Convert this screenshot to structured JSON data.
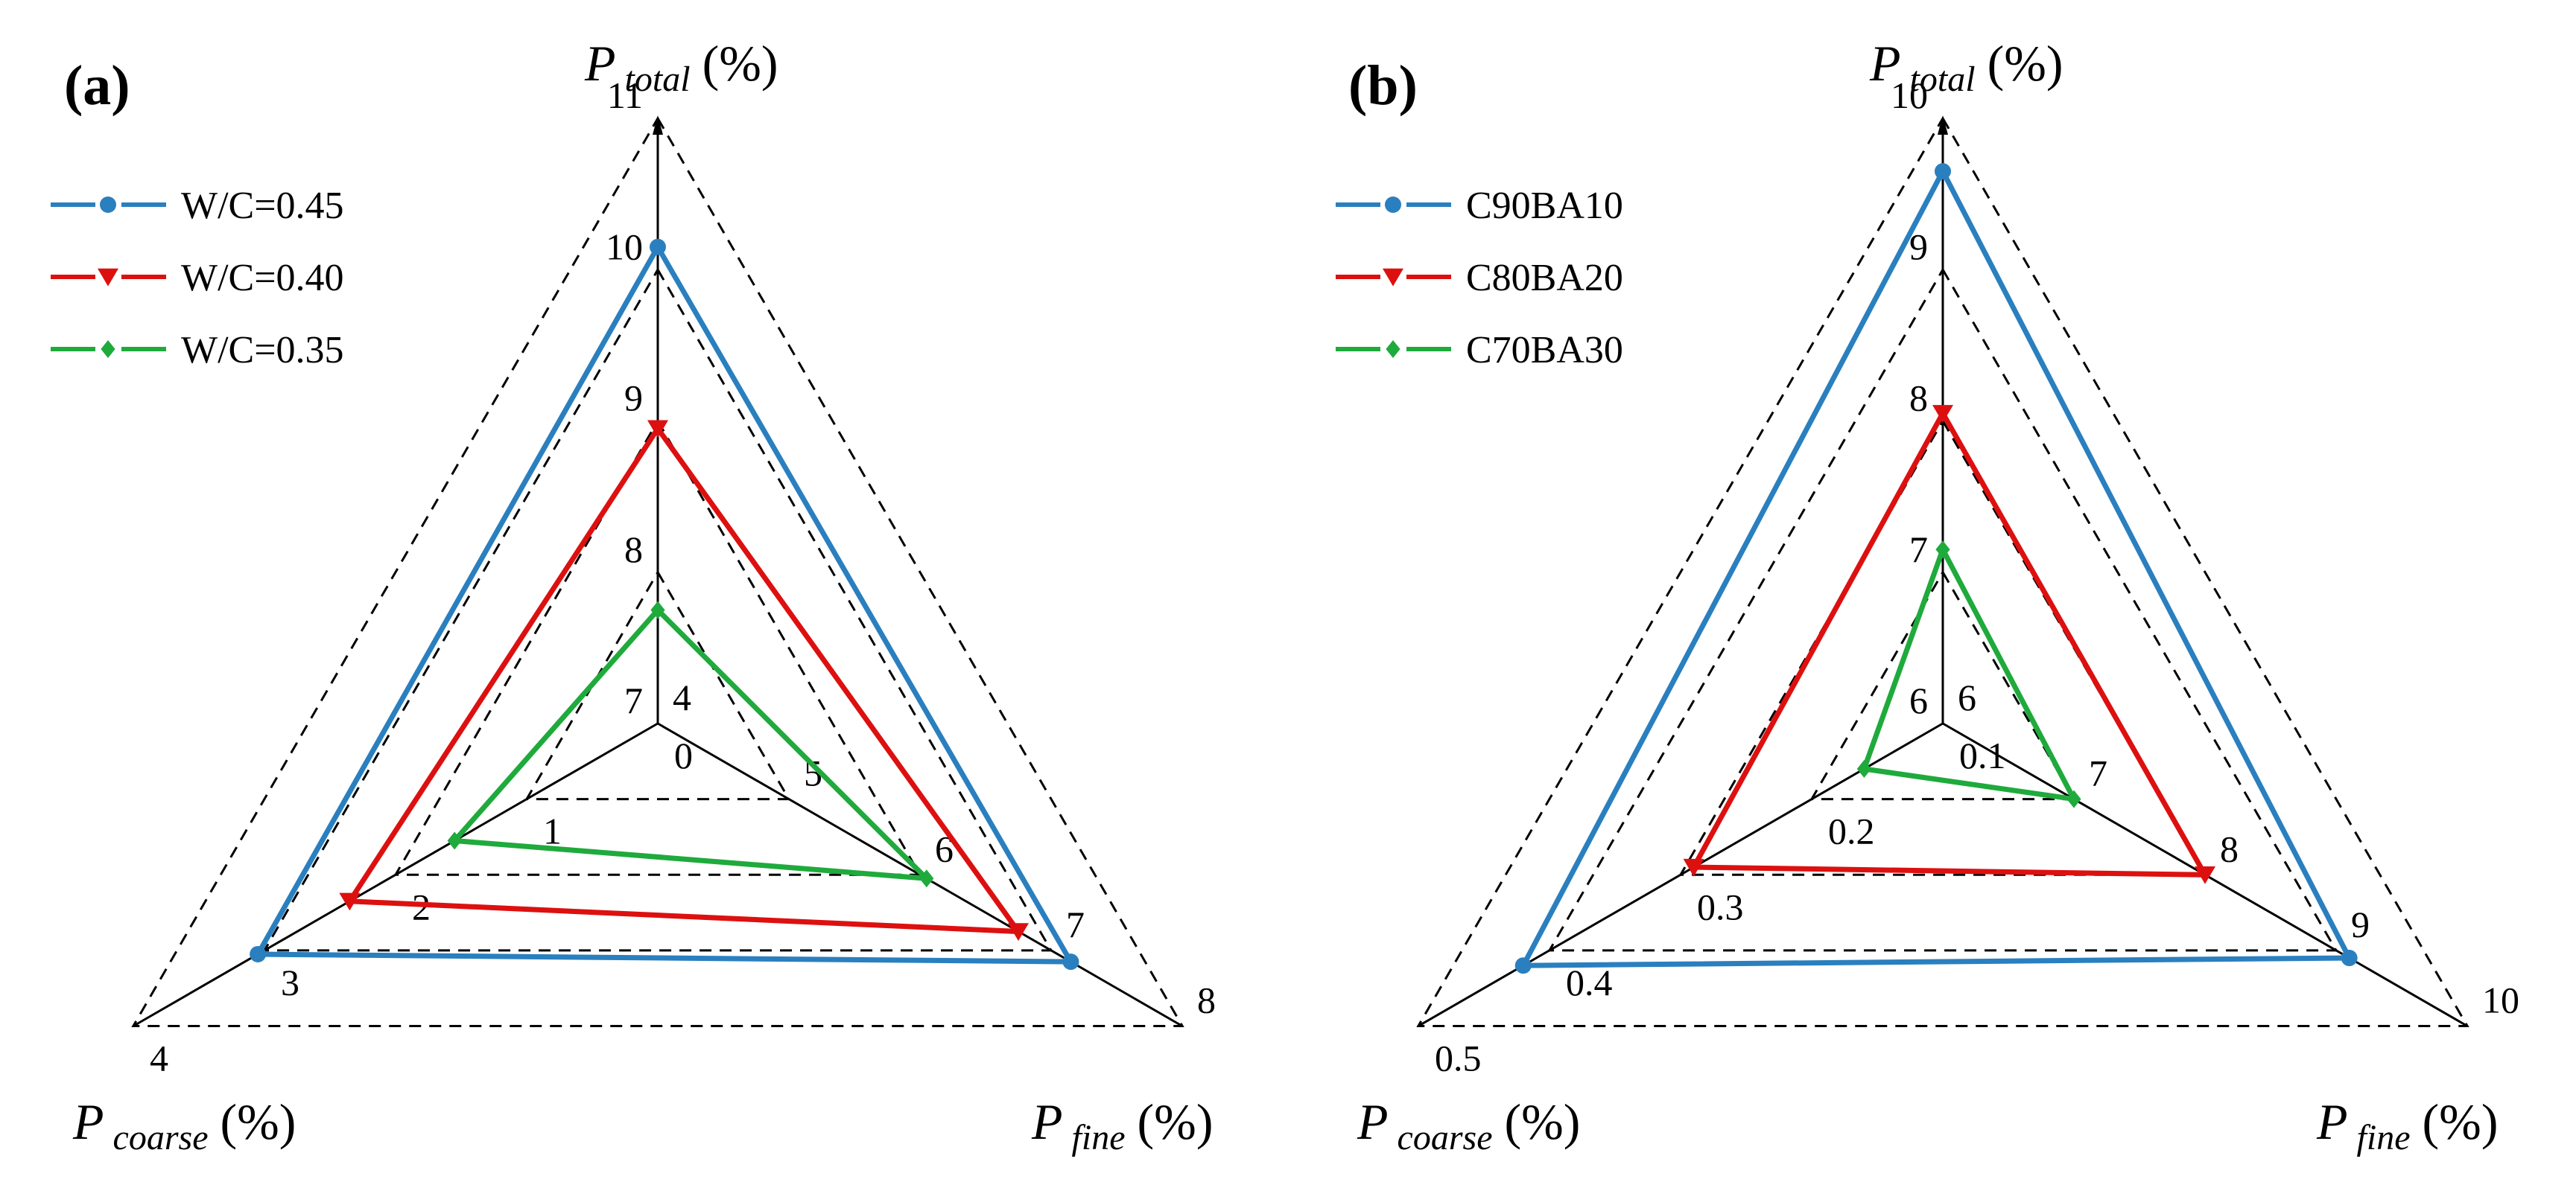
{
  "chart_data": [
    {
      "type": "radar-ternary",
      "panel_label": "(a)",
      "axes": [
        {
          "key": "total",
          "label_main": "P",
          "label_sub": "total",
          "unit": "(%)",
          "range": [
            7,
            11
          ],
          "ticks": [
            7,
            8,
            9,
            10,
            11
          ]
        },
        {
          "key": "fine",
          "label_main": "P",
          "label_sub": "fine",
          "unit": "(%)",
          "range": [
            4,
            8
          ],
          "ticks": [
            4,
            5,
            6,
            7,
            8
          ]
        },
        {
          "key": "coarse",
          "label_main": "P",
          "label_sub": "coarse",
          "unit": "(%)",
          "range": [
            0,
            4
          ],
          "ticks": [
            0,
            1,
            2,
            3,
            4
          ]
        }
      ],
      "series": [
        {
          "name": "W/C=0.45",
          "color": "#2a7fbf",
          "marker": "circle",
          "values": {
            "total": 10.15,
            "fine": 7.15,
            "coarse": 3.05
          }
        },
        {
          "name": "W/C=0.40",
          "color": "#dd1010",
          "marker": "triangle-down",
          "values": {
            "total": 8.95,
            "fine": 6.75,
            "coarse": 2.35
          }
        },
        {
          "name": "W/C=0.35",
          "color": "#1faa3c",
          "marker": "diamond",
          "values": {
            "total": 7.75,
            "fine": 6.05,
            "coarse": 1.55
          }
        }
      ],
      "legend_position": "top-left"
    },
    {
      "type": "radar-ternary",
      "panel_label": "(b)",
      "axes": [
        {
          "key": "total",
          "label_main": "P",
          "label_sub": "total",
          "unit": "(%)",
          "range": [
            6,
            10
          ],
          "ticks": [
            6,
            7,
            8,
            9,
            10
          ]
        },
        {
          "key": "fine",
          "label_main": "P",
          "label_sub": "fine",
          "unit": "(%)",
          "range": [
            6,
            10
          ],
          "ticks": [
            6,
            7,
            8,
            9,
            10
          ]
        },
        {
          "key": "coarse",
          "label_main": "P",
          "label_sub": "coarse",
          "unit": "(%)",
          "range": [
            0.1,
            0.5
          ],
          "ticks": [
            0.1,
            0.2,
            0.3,
            0.4,
            0.5
          ]
        }
      ],
      "series": [
        {
          "name": "C90BA10",
          "color": "#2a7fbf",
          "marker": "circle",
          "values": {
            "total": 9.65,
            "fine": 9.1,
            "coarse": 0.42
          }
        },
        {
          "name": "C80BA20",
          "color": "#dd1010",
          "marker": "triangle-down",
          "values": {
            "total": 8.05,
            "fine": 8.0,
            "coarse": 0.29
          }
        },
        {
          "name": "C70BA30",
          "color": "#1faa3c",
          "marker": "diamond",
          "values": {
            "total": 7.15,
            "fine": 7.0,
            "coarse": 0.16
          }
        }
      ],
      "legend_position": "top-left"
    }
  ]
}
